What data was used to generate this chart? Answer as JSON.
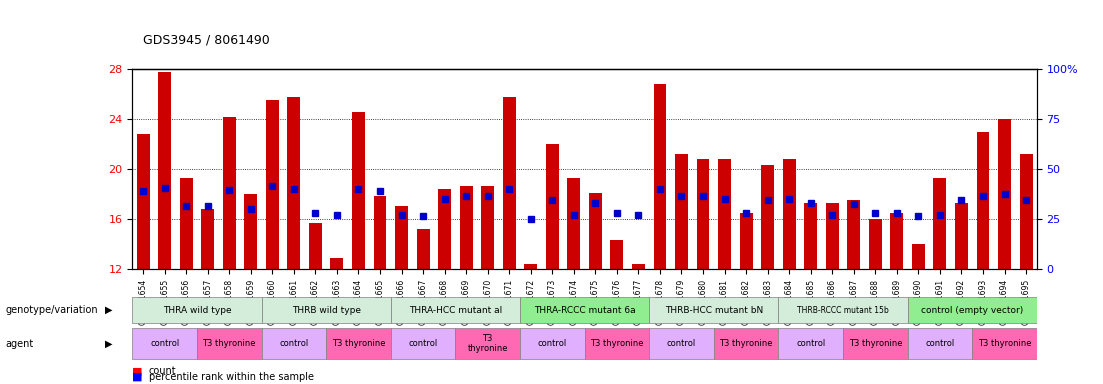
{
  "title": "GDS3945 / 8061490",
  "samples": [
    "GSM721654",
    "GSM721655",
    "GSM721656",
    "GSM721657",
    "GSM721658",
    "GSM721659",
    "GSM721660",
    "GSM721661",
    "GSM721662",
    "GSM721663",
    "GSM721664",
    "GSM721665",
    "GSM721666",
    "GSM721667",
    "GSM721668",
    "GSM721669",
    "GSM721670",
    "GSM721671",
    "GSM721672",
    "GSM721673",
    "GSM721674",
    "GSM721675",
    "GSM721676",
    "GSM721677",
    "GSM721678",
    "GSM721679",
    "GSM721680",
    "GSM721681",
    "GSM721682",
    "GSM721683",
    "GSM721684",
    "GSM721685",
    "GSM721686",
    "GSM721687",
    "GSM721688",
    "GSM721689",
    "GSM721690",
    "GSM721691",
    "GSM721692",
    "GSM721693",
    "GSM721694",
    "GSM721695"
  ],
  "red_values": [
    22.8,
    27.8,
    19.3,
    16.8,
    24.2,
    18.0,
    25.5,
    25.8,
    15.7,
    12.9,
    24.6,
    17.8,
    17.0,
    15.2,
    18.4,
    18.6,
    18.6,
    25.8,
    12.4,
    22.0,
    19.3,
    18.1,
    14.3,
    12.4,
    26.8,
    21.2,
    20.8,
    20.8,
    16.5,
    20.3,
    20.8,
    17.3,
    17.3,
    17.5,
    16.0,
    16.5,
    14.0,
    19.3,
    17.3,
    23.0,
    24.0,
    21.2
  ],
  "blue_values": [
    18.2,
    18.5,
    17.0,
    17.0,
    18.3,
    16.8,
    18.6,
    18.4,
    16.5,
    16.3,
    18.4,
    18.2,
    16.3,
    16.2,
    17.6,
    17.8,
    17.8,
    18.4,
    16.0,
    17.5,
    16.3,
    17.3,
    16.5,
    16.3,
    18.4,
    17.8,
    17.8,
    17.6,
    16.5,
    17.5,
    17.6,
    17.3,
    16.3,
    17.2,
    16.5,
    16.5,
    16.2,
    16.3,
    17.5,
    17.8,
    18.0,
    17.5
  ],
  "ylim_left": [
    12,
    28
  ],
  "ylim_right": [
    0,
    100
  ],
  "yticks_left": [
    12,
    16,
    20,
    24,
    28
  ],
  "yticks_right": [
    0,
    25,
    50,
    75,
    100
  ],
  "ytick_labels_right": [
    "0",
    "25",
    "50",
    "75",
    "100%"
  ],
  "grid_lines": [
    16,
    20,
    24
  ],
  "bar_color": "#cc0000",
  "dot_color": "#0000cc",
  "genotype_groups": [
    {
      "label": "THRA wild type",
      "start": 0,
      "end": 6,
      "color": "#d4edda"
    },
    {
      "label": "THRB wild type",
      "start": 6,
      "end": 12,
      "color": "#d4edda"
    },
    {
      "label": "THRA-HCC mutant al",
      "start": 12,
      "end": 18,
      "color": "#d4edda"
    },
    {
      "label": "THRA-RCCC mutant 6a",
      "start": 18,
      "end": 24,
      "color": "#90ee90"
    },
    {
      "label": "THRB-HCC mutant bN",
      "start": 24,
      "end": 30,
      "color": "#d4edda"
    },
    {
      "label": "THRB-RCCC mutant 15b",
      "start": 30,
      "end": 36,
      "color": "#d4edda"
    },
    {
      "label": "control (empty vector)",
      "start": 36,
      "end": 42,
      "color": "#90ee90"
    }
  ],
  "agent_groups": [
    {
      "label": "control",
      "start": 0,
      "end": 3,
      "color": "#e0b0ff"
    },
    {
      "label": "T3 thyronine",
      "start": 3,
      "end": 6,
      "color": "#ff69b4"
    },
    {
      "label": "control",
      "start": 6,
      "end": 9,
      "color": "#e0b0ff"
    },
    {
      "label": "T3 thyronine",
      "start": 9,
      "end": 12,
      "color": "#ff69b4"
    },
    {
      "label": "control",
      "start": 12,
      "end": 15,
      "color": "#e0b0ff"
    },
    {
      "label": "T3\nthyronine",
      "start": 15,
      "end": 18,
      "color": "#ff69b4"
    },
    {
      "label": "control",
      "start": 18,
      "end": 21,
      "color": "#e0b0ff"
    },
    {
      "label": "T3 thyronine",
      "start": 21,
      "end": 24,
      "color": "#ff69b4"
    },
    {
      "label": "control",
      "start": 24,
      "end": 27,
      "color": "#e0b0ff"
    },
    {
      "label": "T3 thyronine",
      "start": 27,
      "end": 30,
      "color": "#ff69b4"
    },
    {
      "label": "control",
      "start": 30,
      "end": 33,
      "color": "#e0b0ff"
    },
    {
      "label": "T3 thyronine",
      "start": 33,
      "end": 36,
      "color": "#ff69b4"
    },
    {
      "label": "control",
      "start": 36,
      "end": 39,
      "color": "#e0b0ff"
    },
    {
      "label": "T3 thyronine",
      "start": 39,
      "end": 42,
      "color": "#ff69b4"
    }
  ],
  "legend_items": [
    {
      "label": "count",
      "color": "#cc0000"
    },
    {
      "label": "percentile rank within the sample",
      "color": "#0000cc"
    }
  ]
}
